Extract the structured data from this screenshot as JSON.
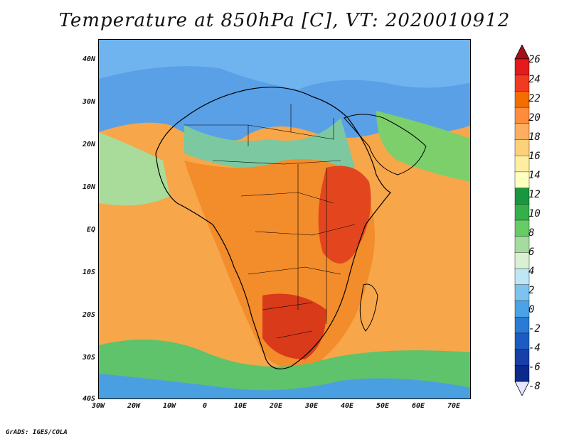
{
  "title": "Temperature at 850hPa [C], VT: 2020010912",
  "credit": "GrADS: IGES/COLA",
  "map": {
    "region": "Africa",
    "lat_labels": [
      "40N",
      "30N",
      "20N",
      "10N",
      "EQ",
      "10S",
      "20S",
      "30S",
      "40S"
    ],
    "lon_labels": [
      "30W",
      "20W",
      "10W",
      "0",
      "10E",
      "20E",
      "30E",
      "40E",
      "50E",
      "60E",
      "70E"
    ],
    "lon_range": [
      -30,
      75
    ],
    "lat_range": [
      -40,
      45
    ]
  },
  "colorbar": {
    "labels": [
      "26",
      "24",
      "22",
      "20",
      "18",
      "16",
      "14",
      "12",
      "10",
      "8",
      "6",
      "4",
      "2",
      "0",
      "-2",
      "-4",
      "-6",
      "-8"
    ],
    "colors": [
      "#a50f15",
      "#e41a1c",
      "#f03b20",
      "#f46d00",
      "#fd8d3c",
      "#fdae61",
      "#fdd17a",
      "#ffeda0",
      "#ffffbf",
      "#1a9641",
      "#33b04a",
      "#66cc66",
      "#a6dba0",
      "#d9f0d3",
      "#bfe6f5",
      "#7cc4ef",
      "#4aa3e6",
      "#2b7bd6",
      "#1b5cc4",
      "#1640a8",
      "#0d2a8a",
      "#e6e6ff"
    ]
  }
}
